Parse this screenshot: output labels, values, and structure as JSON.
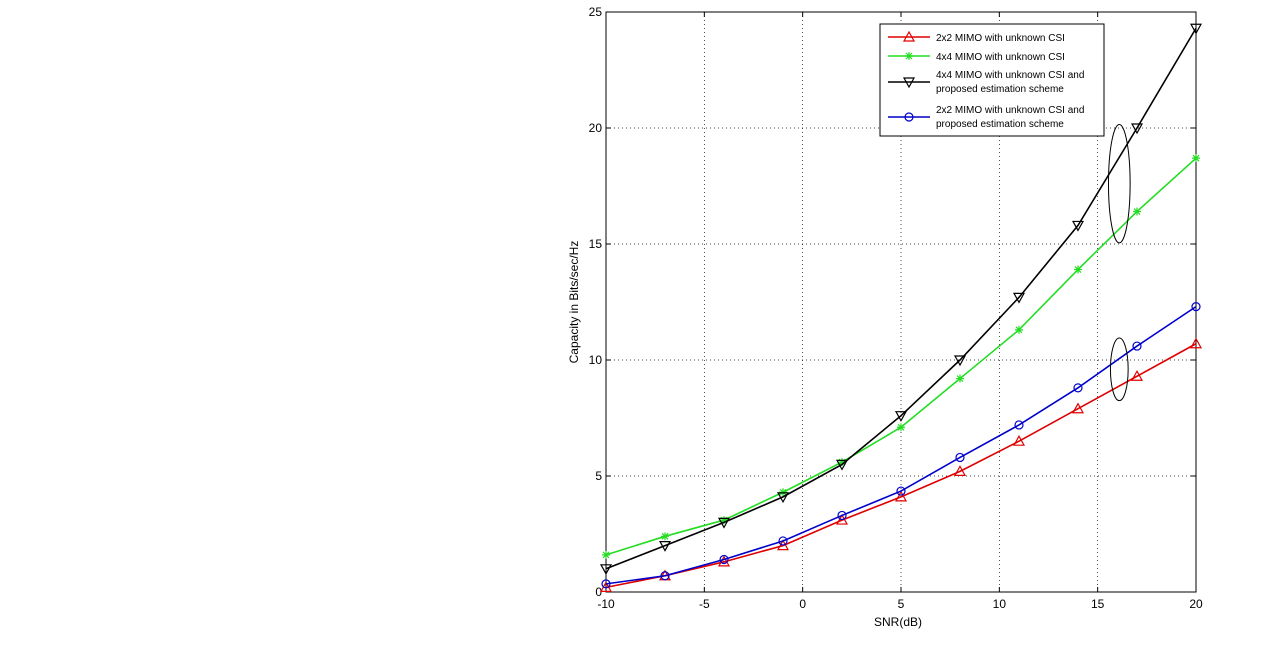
{
  "chart_data": {
    "type": "line",
    "title": "",
    "xlabel": "SNR(dB)",
    "ylabel": "Capacity in Bits/sec/Hz",
    "xlim": [
      -10,
      20
    ],
    "ylim": [
      0,
      25
    ],
    "xticks": [
      -10,
      -5,
      0,
      5,
      10,
      15,
      20
    ],
    "yticks": [
      0,
      5,
      10,
      15,
      20,
      25
    ],
    "grid": true,
    "legend_position": "top-right",
    "x": [
      -10,
      -7,
      -4,
      -1,
      2,
      5,
      8,
      11,
      14,
      17,
      20
    ],
    "series": [
      {
        "name": "2x2 MIMO with unknown CSI",
        "legend_lines": [
          "2x2 MIMO with unknown CSI"
        ],
        "color": "#e00000",
        "marker": "triangle-up",
        "values": [
          0.2,
          0.7,
          1.3,
          2.0,
          3.1,
          4.1,
          5.2,
          6.5,
          7.9,
          9.3,
          10.7
        ]
      },
      {
        "name": "4x4 MIMO with unknown CSI",
        "legend_lines": [
          "4x4 MIMO with unknown CSI"
        ],
        "color": "#22dd22",
        "marker": "star",
        "values": [
          1.6,
          2.4,
          3.1,
          4.3,
          5.6,
          7.1,
          9.2,
          11.3,
          13.9,
          16.4,
          18.7
        ]
      },
      {
        "name": "4x4 MIMO with unknown CSI and proposed estimation scheme",
        "legend_lines": [
          "4x4 MIMO with unknown CSI and",
          "proposed estimation scheme"
        ],
        "color": "#000000",
        "marker": "triangle-down",
        "values": [
          1.0,
          2.0,
          3.0,
          4.1,
          5.5,
          7.6,
          10.0,
          12.7,
          15.8,
          20.0,
          24.3
        ]
      },
      {
        "name": "2x2 MIMO with unknown CSI and proposed estimation scheme",
        "legend_lines": [
          "2x2 MIMO with unknown CSI and",
          "proposed estimation scheme"
        ],
        "color": "#0000cc",
        "marker": "circle",
        "values": [
          0.35,
          0.7,
          1.4,
          2.2,
          3.3,
          4.35,
          5.8,
          7.2,
          8.8,
          10.6,
          12.3
        ]
      }
    ],
    "annotations": [
      {
        "type": "ellipse",
        "cx": 16.1,
        "cy": 17.6,
        "rx": 0.55,
        "ry": 2.55
      },
      {
        "type": "ellipse",
        "cx": 16.1,
        "cy": 9.6,
        "rx": 0.45,
        "ry": 1.35
      }
    ]
  }
}
